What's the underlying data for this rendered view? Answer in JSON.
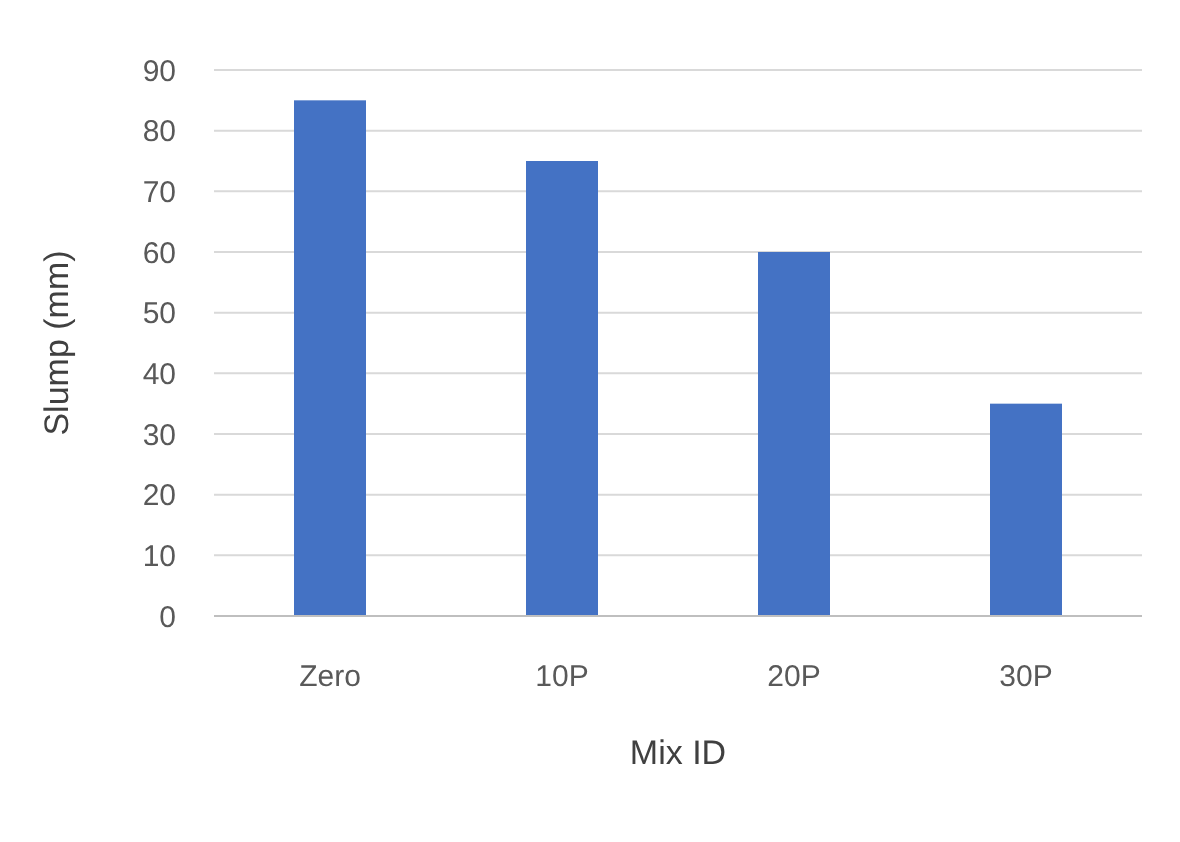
{
  "chart_data": {
    "type": "bar",
    "xlabel": "Mix ID",
    "ylabel": "Slump (mm)",
    "categories": [
      "Zero",
      "10P",
      "20P",
      "30P"
    ],
    "values": [
      85,
      75,
      60,
      35
    ],
    "color": "#4472c4",
    "ylim": [
      0,
      90
    ],
    "yticks": [
      0,
      10,
      20,
      30,
      40,
      50,
      60,
      70,
      80,
      90
    ],
    "grid": "y"
  }
}
